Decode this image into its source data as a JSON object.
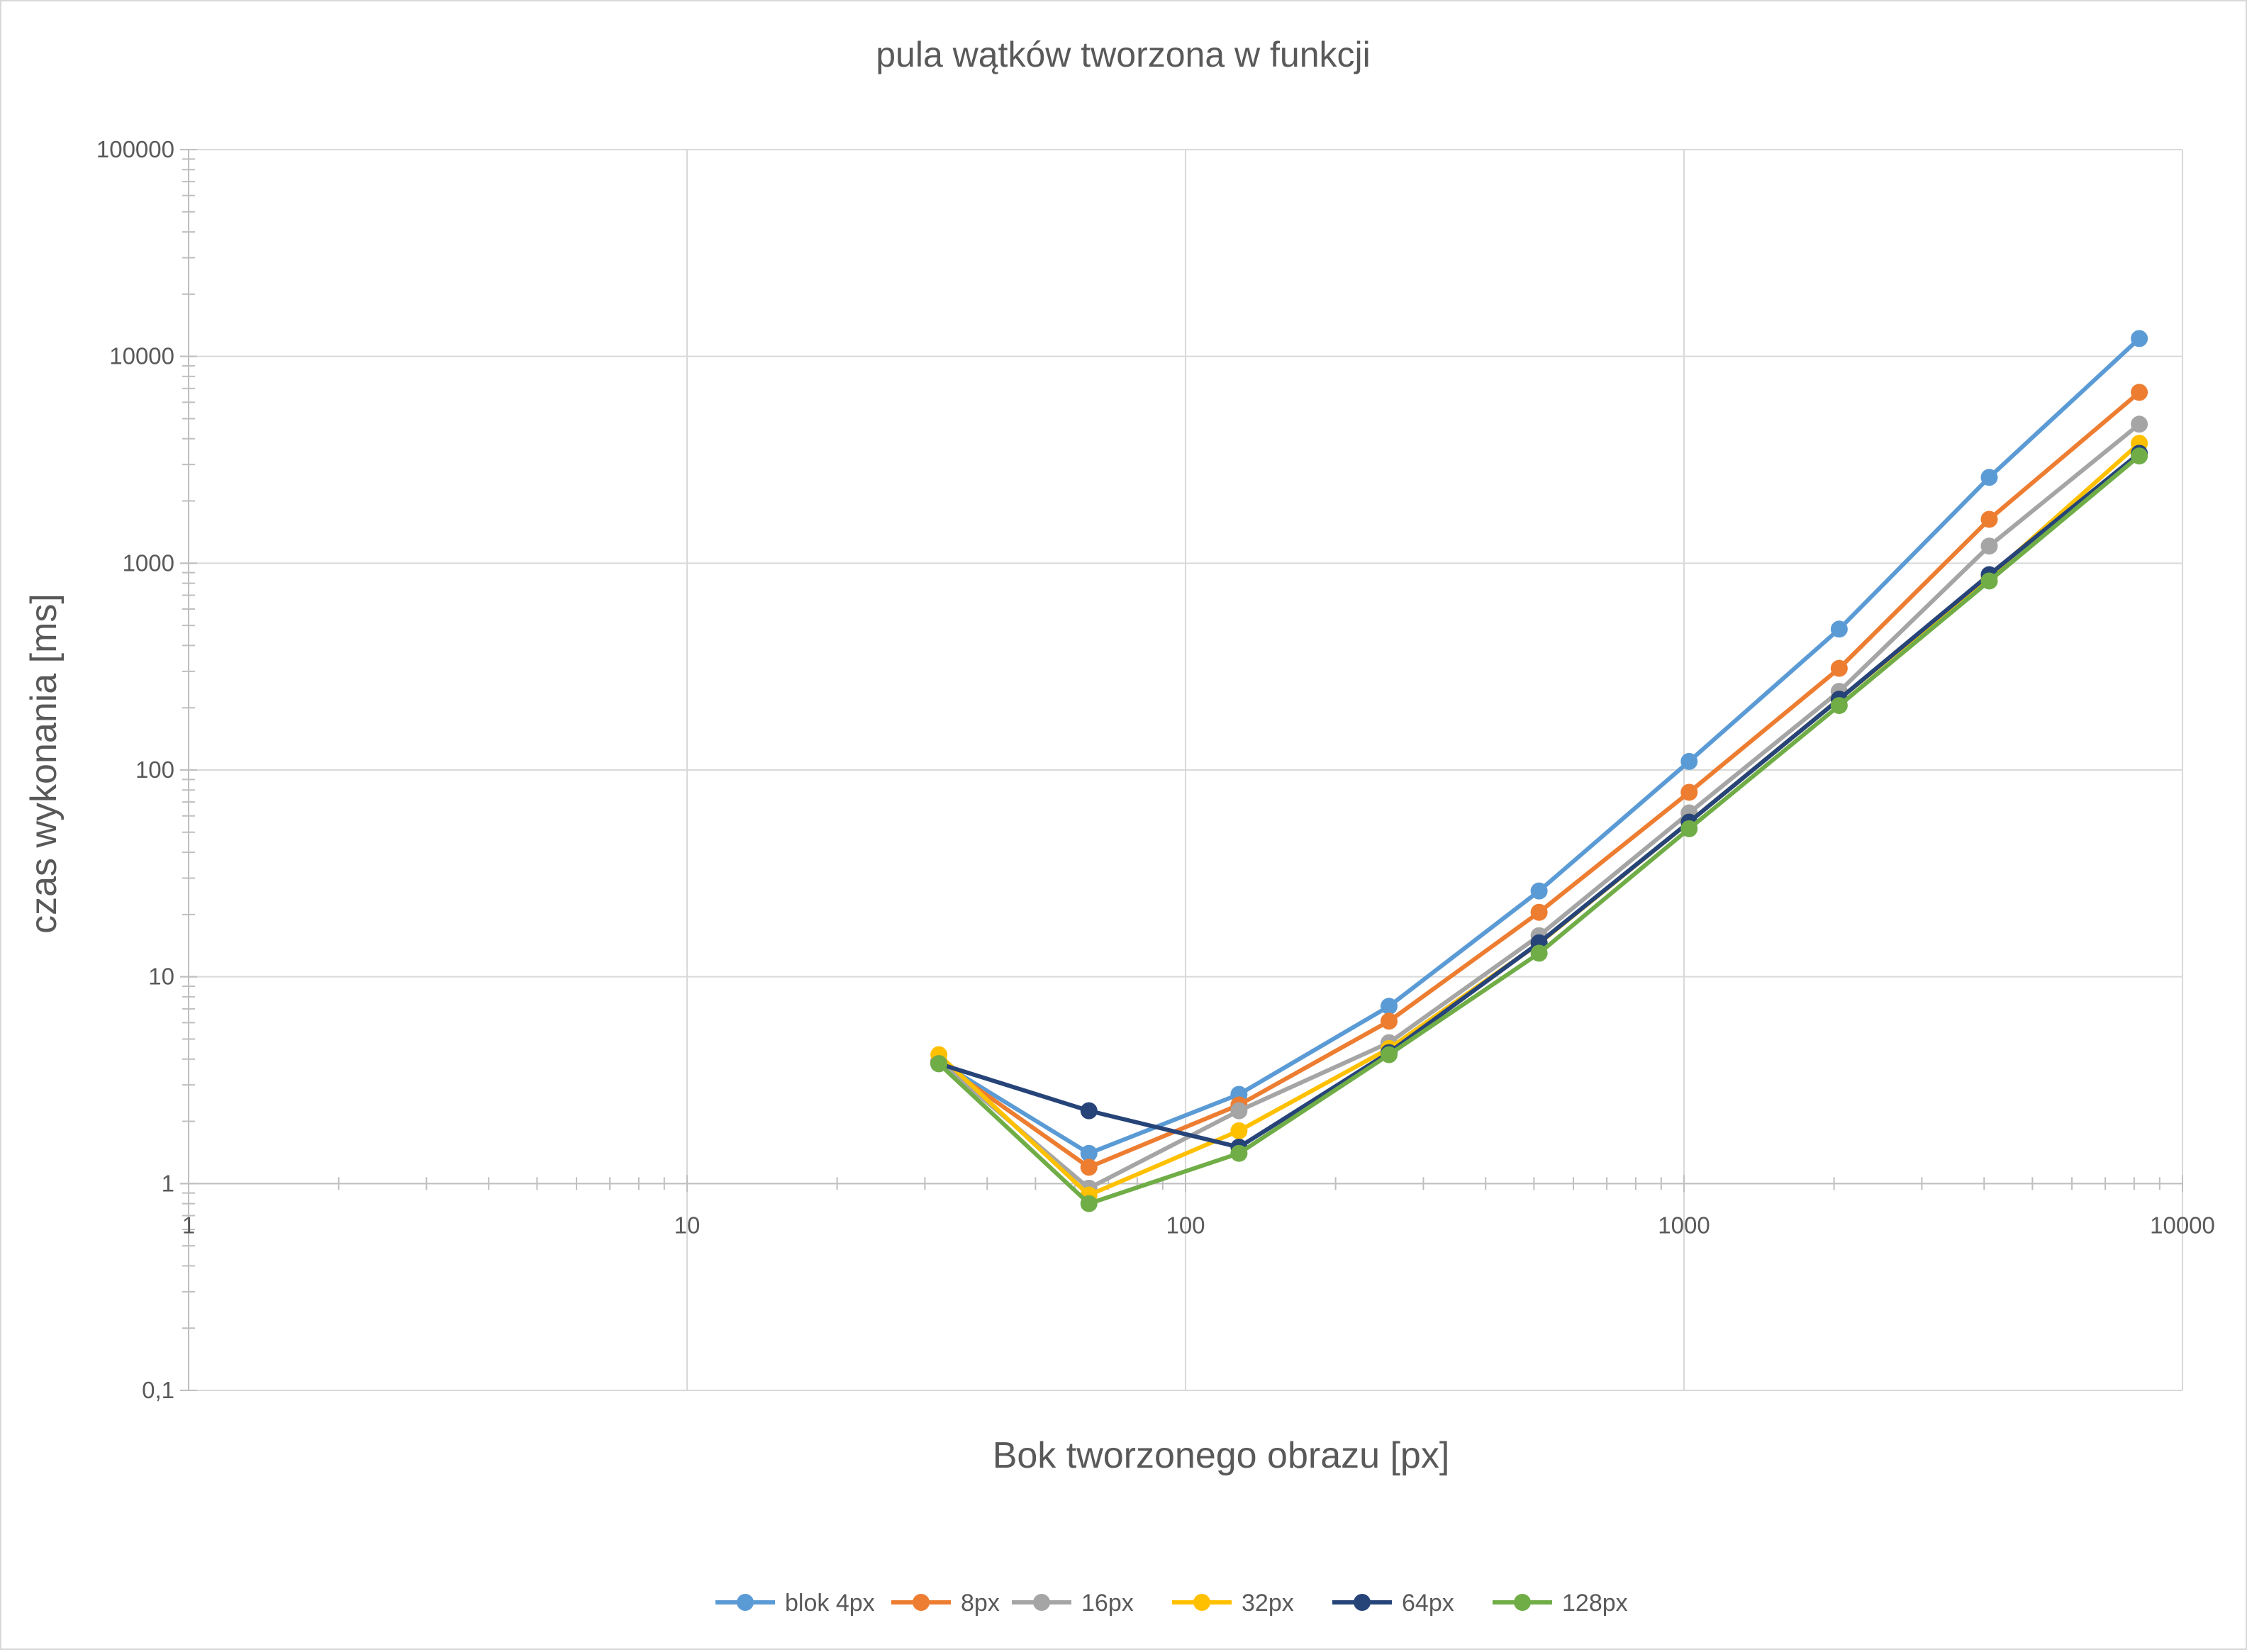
{
  "chart_data": {
    "type": "line",
    "title": "pula wątków tworzona w funkcji",
    "xlabel": "Bok tworzonego obrazu [px]",
    "ylabel": "czas wykonania [ms]",
    "x_scale": "log",
    "y_scale": "log",
    "xlim": [
      1,
      10000
    ],
    "ylim": [
      0.1,
      100000
    ],
    "x_ticks": [
      "1",
      "10",
      "100",
      "1000",
      "10000"
    ],
    "y_ticks": [
      "0,1",
      "1",
      "10",
      "100",
      "1000",
      "10000",
      "100000"
    ],
    "grid": "major",
    "legend_position": "bottom",
    "x": [
      32,
      64,
      128,
      256,
      512,
      1024,
      2048,
      4096,
      8192
    ],
    "series": [
      {
        "name": "blok 4px",
        "color": "#5B9BD5",
        "values": [
          3.9,
          1.4,
          2.7,
          7.2,
          26,
          110,
          480,
          2600,
          12200
        ]
      },
      {
        "name": "8px",
        "color": "#ED7D31",
        "values": [
          3.9,
          1.2,
          2.4,
          6.1,
          20.5,
          78,
          310,
          1630,
          6700
        ]
      },
      {
        "name": "16px",
        "color": "#A5A5A5",
        "values": [
          3.9,
          0.95,
          2.25,
          4.8,
          15.8,
          62,
          240,
          1210,
          4700
        ]
      },
      {
        "name": "32px",
        "color": "#FFC000",
        "values": [
          4.2,
          0.88,
          1.8,
          4.5,
          14.5,
          56,
          220,
          860,
          3800
        ]
      },
      {
        "name": "64px",
        "color": "#264478",
        "values": [
          3.8,
          2.25,
          1.5,
          4.3,
          14.6,
          56,
          220,
          880,
          3400
        ]
      },
      {
        "name": "128px",
        "color": "#70AD47",
        "values": [
          3.8,
          0.8,
          1.4,
          4.2,
          13,
          52,
          205,
          820,
          3300
        ]
      }
    ]
  }
}
